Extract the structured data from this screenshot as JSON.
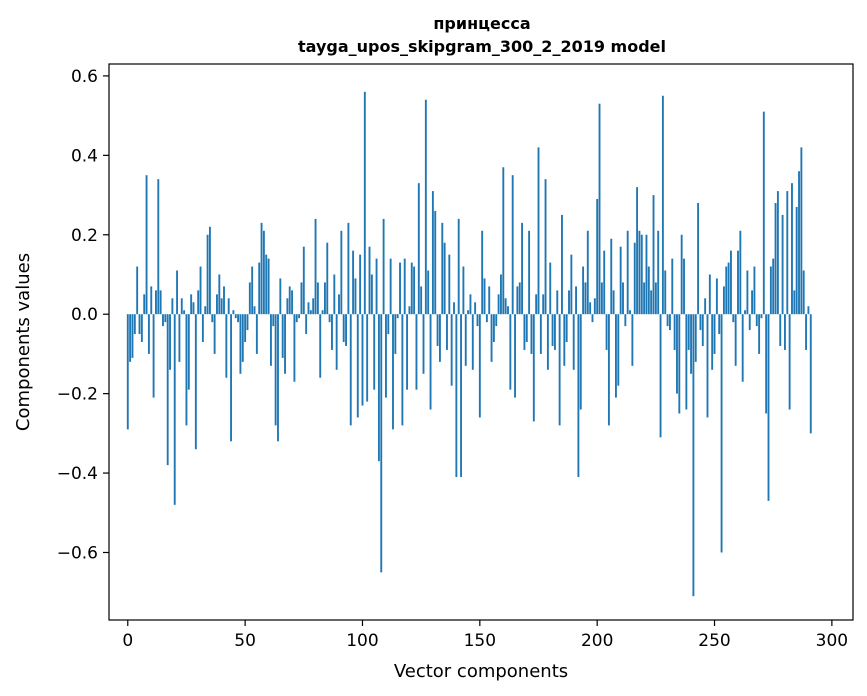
{
  "chart_data": {
    "type": "bar",
    "title": "принцесса",
    "subtitle": "tayga_upos_skipgram_300_2_2019 model",
    "xlabel": "Vector components",
    "ylabel": "Components values",
    "xlim": [
      -8,
      309
    ],
    "ylim": [
      -0.77,
      0.63
    ],
    "xticks": [
      0,
      50,
      100,
      150,
      200,
      250,
      300
    ],
    "yticks": [
      -0.6,
      -0.4,
      -0.2,
      0.0,
      0.2,
      0.4,
      0.6
    ],
    "ytick_labels": [
      "−0.6",
      "−0.4",
      "−0.2",
      "0.0",
      "0.2",
      "0.4",
      "0.6"
    ],
    "bar_color": "#1f77b4",
    "values": [
      -0.29,
      -0.12,
      -0.11,
      -0.05,
      0.12,
      -0.05,
      -0.07,
      0.05,
      0.35,
      -0.1,
      0.07,
      -0.21,
      0.06,
      0.34,
      0.06,
      -0.03,
      -0.02,
      -0.38,
      -0.14,
      0.04,
      -0.48,
      0.11,
      -0.12,
      0.04,
      0.01,
      -0.28,
      -0.19,
      0.05,
      0.03,
      -0.34,
      0.06,
      0.12,
      -0.07,
      0.02,
      0.2,
      0.22,
      -0.02,
      -0.1,
      0.05,
      0.1,
      0.04,
      0.07,
      -0.16,
      0.04,
      -0.32,
      0.01,
      -0.01,
      -0.02,
      -0.15,
      -0.12,
      -0.07,
      -0.04,
      0.08,
      0.12,
      0.02,
      -0.1,
      0.13,
      0.23,
      0.21,
      0.15,
      0.14,
      -0.13,
      -0.03,
      -0.28,
      -0.32,
      0.09,
      -0.11,
      -0.15,
      0.04,
      0.07,
      0.06,
      -0.17,
      -0.02,
      -0.01,
      0.08,
      0.17,
      -0.05,
      0.03,
      0.01,
      0.04,
      0.24,
      0.08,
      -0.16,
      0.01,
      0.08,
      0.18,
      -0.02,
      -0.09,
      0.1,
      -0.14,
      0.05,
      0.21,
      -0.07,
      -0.08,
      0.23,
      -0.28,
      0.16,
      0.09,
      -0.26,
      0.15,
      -0.23,
      0.56,
      -0.22,
      0.17,
      0.1,
      -0.19,
      0.14,
      -0.37,
      -0.65,
      0.24,
      -0.21,
      -0.05,
      0.14,
      -0.29,
      -0.1,
      -0.01,
      0.13,
      -0.28,
      0.14,
      -0.19,
      0.02,
      0.13,
      0.12,
      -0.19,
      0.33,
      0.07,
      -0.15,
      0.54,
      0.11,
      -0.24,
      0.31,
      0.26,
      -0.08,
      -0.12,
      0.23,
      0.18,
      -0.09,
      0.15,
      -0.18,
      0.03,
      -0.41,
      0.24,
      -0.41,
      0.12,
      -0.13,
      0.01,
      0.05,
      -0.14,
      0.03,
      -0.03,
      -0.26,
      0.21,
      0.09,
      -0.02,
      0.07,
      -0.12,
      -0.07,
      -0.03,
      0.05,
      0.1,
      0.37,
      0.04,
      0.02,
      -0.19,
      0.35,
      -0.21,
      0.07,
      0.08,
      0.23,
      -0.09,
      -0.07,
      0.21,
      -0.1,
      -0.27,
      0.05,
      0.42,
      -0.1,
      0.05,
      0.34,
      -0.14,
      0.13,
      -0.08,
      -0.09,
      0.06,
      -0.28,
      0.25,
      -0.13,
      -0.07,
      0.06,
      0.15,
      -0.14,
      0.07,
      -0.41,
      -0.24,
      0.12,
      0.08,
      0.21,
      0.03,
      -0.02,
      0.04,
      0.29,
      0.53,
      0.08,
      0.16,
      -0.09,
      -0.28,
      0.19,
      0.06,
      -0.21,
      -0.18,
      0.17,
      0.08,
      -0.03,
      0.21,
      0.01,
      -0.13,
      0.18,
      0.32,
      0.21,
      0.2,
      0.08,
      0.2,
      0.12,
      0.06,
      0.3,
      0.08,
      0.21,
      -0.31,
      0.55,
      0.11,
      -0.03,
      -0.04,
      0.14,
      -0.09,
      -0.2,
      -0.25,
      0.2,
      0.14,
      -0.24,
      -0.09,
      -0.15,
      -0.71,
      -0.12,
      0.28,
      -0.04,
      -0.08,
      0.04,
      -0.26,
      0.1,
      -0.14,
      -0.1,
      0.09,
      -0.05,
      -0.6,
      0.07,
      0.12,
      0.13,
      0.16,
      -0.02,
      -0.13,
      0.16,
      0.21,
      -0.17,
      0.01,
      0.11,
      -0.04,
      0.06,
      0.12,
      -0.03,
      -0.1,
      -0.01,
      0.51,
      -0.25,
      -0.47,
      0.12,
      0.14,
      0.28,
      0.31,
      -0.08,
      0.25,
      -0.09,
      0.31,
      -0.24,
      0.33,
      0.06,
      0.27,
      0.36,
      0.42,
      0.11,
      -0.09,
      0.02,
      -0.3
    ]
  }
}
